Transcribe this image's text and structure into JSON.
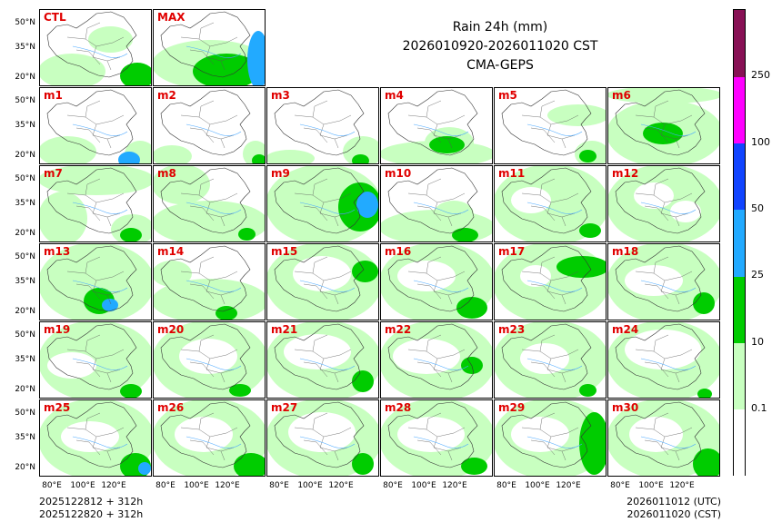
{
  "title": {
    "line1": "Rain 24h (mm)",
    "line2": "2026010920-2026011020 CST",
    "line3": "CMA-GEPS"
  },
  "panels": [
    {
      "label": "CTL",
      "rain": [
        [
          0,
          50,
          70,
          35,
          0
        ],
        [
          55,
          20,
          45,
          25,
          0
        ],
        [
          90,
          60,
          34,
          25,
          1
        ]
      ]
    },
    {
      "label": "MAX",
      "rain": [
        [
          0,
          35,
          124,
          50,
          0
        ],
        [
          45,
          50,
          70,
          35,
          1
        ],
        [
          105,
          25,
          20,
          60,
          2
        ]
      ]
    },
    {
      "label": "m1",
      "rain": [
        [
          0,
          55,
          60,
          30,
          0
        ],
        [
          95,
          60,
          30,
          25,
          0
        ],
        [
          88,
          72,
          20,
          14,
          2
        ]
      ]
    },
    {
      "label": "m2",
      "rain": [
        [
          0,
          65,
          40,
          20,
          0
        ],
        [
          100,
          60,
          24,
          25,
          0
        ],
        [
          110,
          75,
          12,
          10,
          1
        ]
      ]
    },
    {
      "label": "m3",
      "rain": [
        [
          0,
          70,
          50,
          15,
          0
        ],
        [
          85,
          55,
          40,
          30,
          0
        ],
        [
          95,
          75,
          15,
          10,
          1
        ]
      ]
    },
    {
      "label": "m4",
      "rain": [
        [
          0,
          60,
          124,
          25,
          0
        ],
        [
          50,
          45,
          50,
          30,
          0
        ],
        [
          55,
          55,
          35,
          15,
          1
        ]
      ]
    },
    {
      "label": "m5",
      "rain": [
        [
          60,
          20,
          64,
          20,
          0
        ],
        [
          90,
          60,
          34,
          25,
          0
        ],
        [
          95,
          70,
          15,
          10,
          1
        ]
      ]
    },
    {
      "label": "m6",
      "rain": [
        [
          0,
          15,
          124,
          70,
          0
        ],
        [
          0,
          0,
          124,
          15,
          0
        ],
        [
          40,
          40,
          40,
          20,
          1
        ]
      ]
    },
    {
      "label": "m7",
      "rain": [
        [
          0,
          0,
          124,
          30,
          0
        ],
        [
          0,
          30,
          50,
          55,
          0
        ],
        [
          80,
          55,
          44,
          30,
          0
        ],
        [
          90,
          70,
          20,
          12,
          1
        ]
      ]
    },
    {
      "label": "m8",
      "rain": [
        [
          0,
          0,
          60,
          40,
          0
        ],
        [
          0,
          40,
          124,
          45,
          0
        ],
        [
          95,
          70,
          15,
          10,
          1
        ]
      ]
    },
    {
      "label": "m9",
      "rain": [
        [
          0,
          0,
          124,
          85,
          0
        ],
        [
          80,
          20,
          44,
          50,
          1
        ],
        [
          100,
          30,
          20,
          25,
          2
        ]
      ]
    },
    {
      "label": "m10",
      "rain": [
        [
          0,
          50,
          124,
          35,
          0
        ],
        [
          60,
          40,
          40,
          25,
          0
        ],
        [
          80,
          70,
          25,
          12,
          1
        ]
      ]
    },
    {
      "label": "m11",
      "rain": [
        [
          0,
          0,
          124,
          85,
          0
        ],
        [
          20,
          25,
          40,
          25,
          3
        ],
        [
          95,
          65,
          20,
          12,
          1
        ]
      ]
    },
    {
      "label": "m12",
      "rain": [
        [
          0,
          0,
          124,
          85,
          0
        ],
        [
          30,
          20,
          40,
          25,
          3
        ],
        [
          70,
          40,
          30,
          20,
          3
        ]
      ]
    },
    {
      "label": "m13",
      "rain": [
        [
          0,
          0,
          124,
          85,
          0
        ],
        [
          50,
          50,
          30,
          25,
          1
        ],
        [
          70,
          62,
          14,
          10,
          2
        ]
      ]
    },
    {
      "label": "m14",
      "rain": [
        [
          0,
          40,
          124,
          45,
          0
        ],
        [
          0,
          20,
          40,
          25,
          0
        ],
        [
          70,
          70,
          20,
          12,
          1
        ]
      ]
    },
    {
      "label": "m15",
      "rain": [
        [
          0,
          0,
          124,
          85,
          0
        ],
        [
          30,
          15,
          60,
          35,
          3
        ],
        [
          95,
          20,
          25,
          20,
          1
        ]
      ]
    },
    {
      "label": "m16",
      "rain": [
        [
          0,
          0,
          124,
          85,
          0
        ],
        [
          20,
          20,
          60,
          30,
          3
        ],
        [
          85,
          60,
          30,
          20,
          1
        ]
      ]
    },
    {
      "label": "m17",
      "rain": [
        [
          0,
          0,
          124,
          85,
          0
        ],
        [
          70,
          15,
          54,
          20,
          1
        ],
        [
          30,
          25,
          30,
          20,
          3
        ]
      ]
    },
    {
      "label": "m18",
      "rain": [
        [
          0,
          0,
          124,
          85,
          0
        ],
        [
          20,
          25,
          60,
          30,
          3
        ],
        [
          95,
          55,
          20,
          20,
          1
        ]
      ]
    },
    {
      "label": "m19",
      "rain": [
        [
          0,
          0,
          124,
          85,
          0
        ],
        [
          10,
          35,
          50,
          25,
          3
        ],
        [
          90,
          70,
          20,
          12,
          1
        ]
      ]
    },
    {
      "label": "m20",
      "rain": [
        [
          0,
          0,
          124,
          85,
          0
        ],
        [
          30,
          20,
          60,
          35,
          3
        ],
        [
          85,
          70,
          20,
          10,
          1
        ]
      ]
    },
    {
      "label": "m21",
      "rain": [
        [
          0,
          0,
          124,
          85,
          0
        ],
        [
          20,
          15,
          70,
          35,
          3
        ],
        [
          95,
          55,
          20,
          20,
          1
        ]
      ]
    },
    {
      "label": "m22",
      "rain": [
        [
          0,
          0,
          124,
          85,
          0
        ],
        [
          15,
          20,
          70,
          35,
          3
        ],
        [
          90,
          40,
          20,
          15,
          1
        ]
      ]
    },
    {
      "label": "m23",
      "rain": [
        [
          0,
          0,
          124,
          85,
          0
        ],
        [
          30,
          25,
          50,
          30,
          3
        ],
        [
          95,
          70,
          15,
          10,
          1
        ]
      ]
    },
    {
      "label": "m24",
      "rain": [
        [
          0,
          0,
          124,
          85,
          0
        ],
        [
          20,
          10,
          80,
          40,
          3
        ],
        [
          100,
          75,
          12,
          8,
          1
        ]
      ]
    },
    {
      "label": "m25",
      "rain": [
        [
          0,
          0,
          124,
          85,
          0
        ],
        [
          25,
          25,
          60,
          30,
          3
        ],
        [
          90,
          60,
          30,
          25,
          1
        ],
        [
          110,
          70,
          10,
          10,
          2
        ]
      ]
    },
    {
      "label": "m26",
      "rain": [
        [
          0,
          0,
          124,
          85,
          0
        ],
        [
          25,
          20,
          60,
          35,
          3
        ],
        [
          90,
          60,
          34,
          25,
          1
        ]
      ]
    },
    {
      "label": "m27",
      "rain": [
        [
          0,
          0,
          124,
          85,
          0
        ],
        [
          25,
          15,
          70,
          40,
          3
        ],
        [
          95,
          60,
          20,
          20,
          1
        ]
      ]
    },
    {
      "label": "m28",
      "rain": [
        [
          0,
          0,
          124,
          85,
          0
        ],
        [
          20,
          20,
          70,
          35,
          3
        ],
        [
          90,
          65,
          25,
          15,
          1
        ]
      ]
    },
    {
      "label": "m29",
      "rain": [
        [
          0,
          0,
          124,
          85,
          0
        ],
        [
          20,
          20,
          60,
          35,
          3
        ],
        [
          95,
          15,
          29,
          65,
          1
        ]
      ]
    },
    {
      "label": "m30",
      "rain": [
        [
          0,
          0,
          124,
          85,
          0
        ],
        [
          25,
          20,
          55,
          35,
          3
        ],
        [
          95,
          55,
          29,
          30,
          1
        ]
      ]
    }
  ],
  "axes": {
    "lat_labels": [
      "50°N",
      "35°N",
      "20°N"
    ],
    "lon_labels": [
      "80°E",
      "100°E",
      "120°E"
    ]
  },
  "colorbar": {
    "colors": [
      "#ffffff",
      "#c8ffc0",
      "#00cc00",
      "#22aaff",
      "#1144ff",
      "#ff00ff",
      "#881155"
    ],
    "labels": [
      "0.1",
      "10",
      "25",
      "50",
      "100",
      "250"
    ],
    "rain_colors": [
      "#c8ffc0",
      "#00cc00",
      "#22aaff",
      "#ffffff"
    ]
  },
  "footer": {
    "left1": "2025122812 + 312h",
    "left2": "2025122820 + 312h",
    "right1": "2026011012 (UTC)",
    "right2": "2026011020 (CST)"
  }
}
